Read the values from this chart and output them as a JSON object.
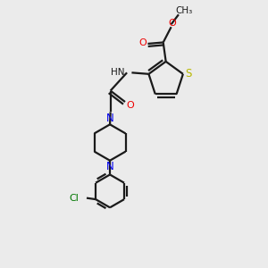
{
  "bg_color": "#ebebeb",
  "bond_color": "#1a1a1a",
  "S_color": "#b8b800",
  "N_color": "#0000ee",
  "O_color": "#ee0000",
  "Cl_color": "#007700",
  "line_width": 1.6,
  "figsize": [
    3.0,
    3.0
  ],
  "dpi": 100,
  "xlim": [
    0,
    10
  ],
  "ylim": [
    0,
    10
  ]
}
